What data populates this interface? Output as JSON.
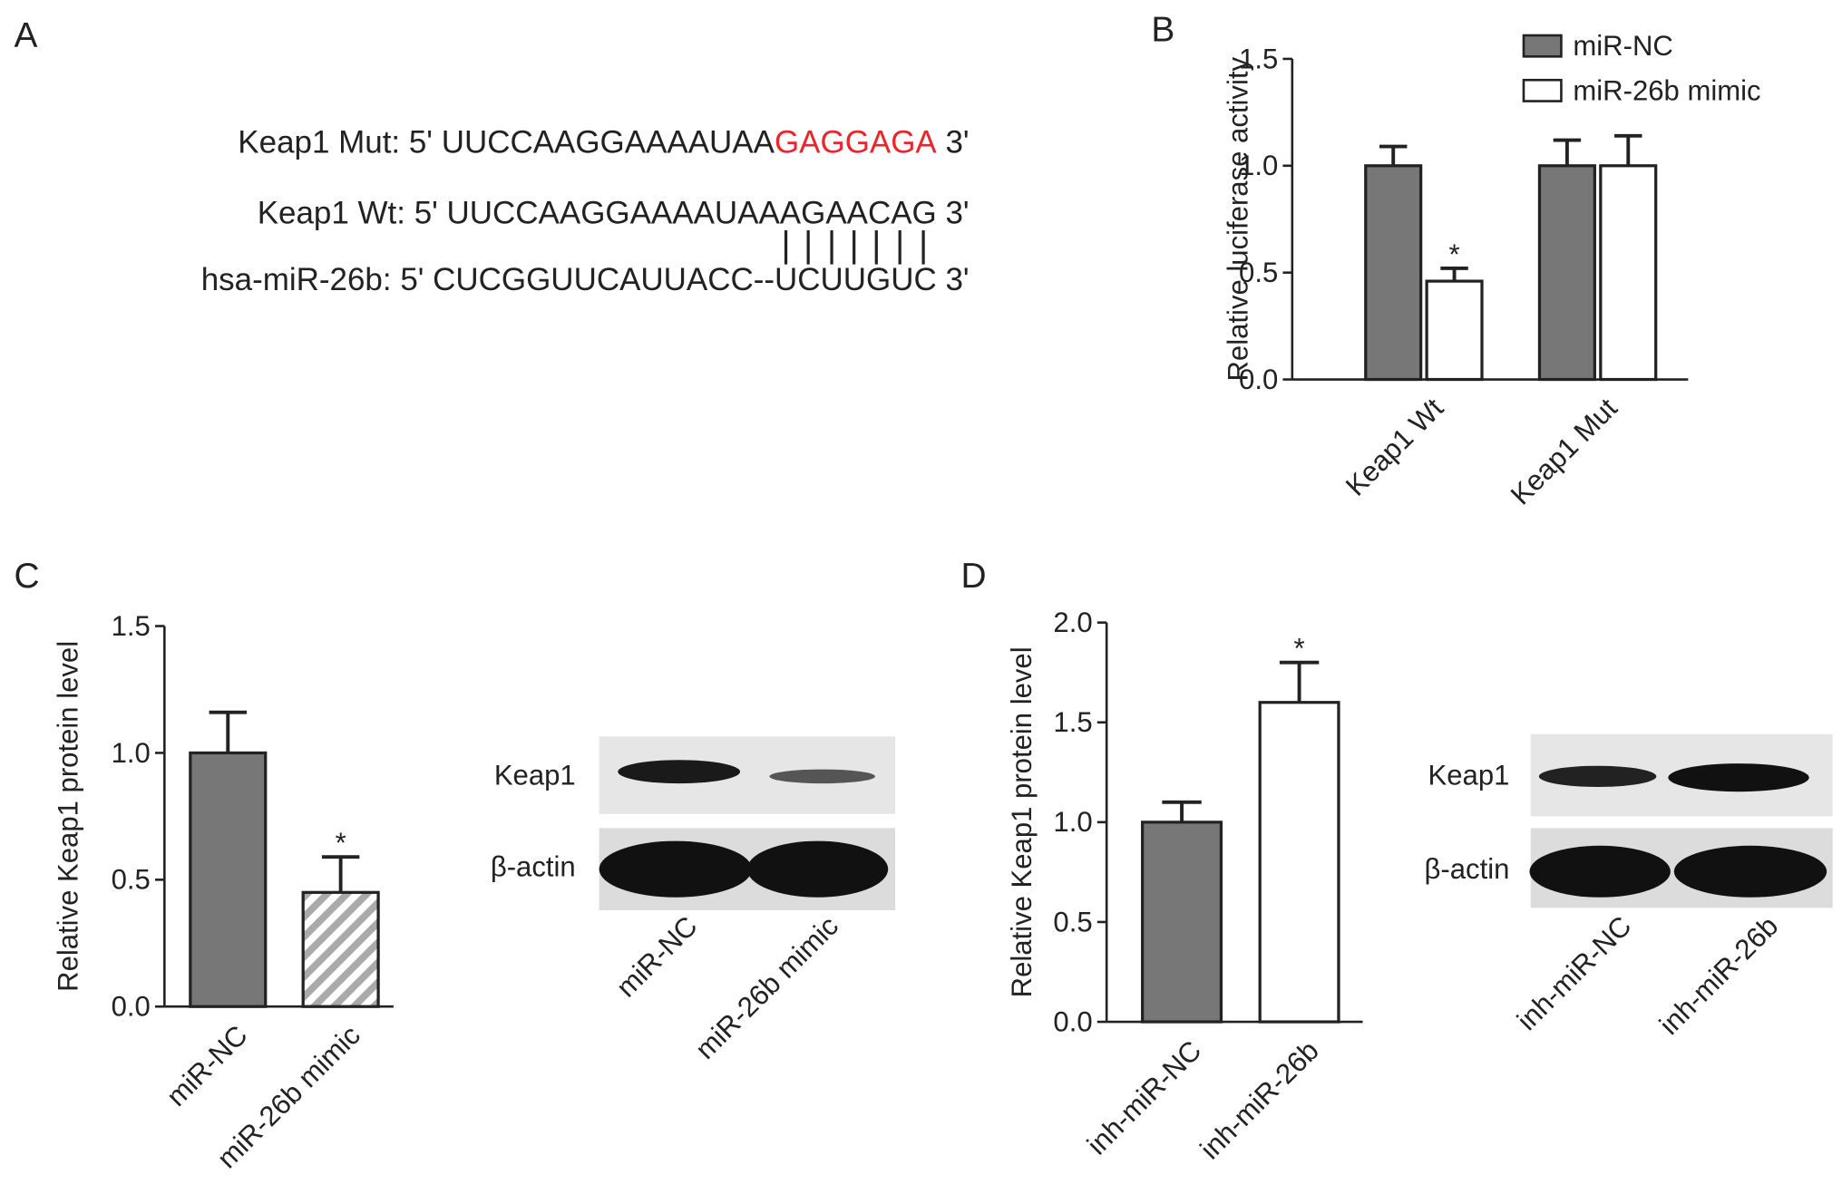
{
  "panel_a": {
    "label": "A",
    "rows": [
      {
        "name": "Keap1 Mut:",
        "seq": "5' UUCCAAGGAAAAUAA",
        "highlight": "GAGGAGA",
        "end": "3'"
      },
      {
        "name": "Keap1 Wt:",
        "seq": "5' UUCCAAGGAAAAUAAAGAACAG",
        "end": "3'"
      },
      {
        "name": "hsa-miR-26b:",
        "seq": "5' CUCGGUUCAUUACC--UCUUGUC",
        "end": "3'"
      }
    ]
  },
  "chart_data": [
    {
      "type": "bar",
      "panel_label": "B",
      "y_label": "Relative luciferase activity",
      "categories": [
        "Keap1 Wt",
        "Keap1 Mut"
      ],
      "series": [
        {
          "name": "miR-NC",
          "color": "#777777",
          "values": [
            1.0,
            1.0
          ],
          "errors": [
            0.09,
            0.12
          ],
          "significance": [
            null,
            null
          ]
        },
        {
          "name": "miR-26b mimic",
          "color": "#ffffff",
          "values": [
            0.46,
            1.0
          ],
          "errors": [
            0.06,
            0.14
          ],
          "significance": [
            "*",
            null
          ]
        }
      ],
      "ylim": [
        0,
        1.5
      ],
      "yticks": [
        {
          "value": 0,
          "label": "0.0"
        },
        0.5,
        {
          "value": 1,
          "label": "1.0"
        },
        1.5
      ],
      "legend": "top-right"
    },
    {
      "type": "bar",
      "panel_label": "C",
      "y_label": "Relative Keap1 protein level",
      "categories": [
        "miR-NC",
        "miR-26b mimic"
      ],
      "values": [
        1.0,
        0.45
      ],
      "errors": [
        0.16,
        0.14
      ],
      "colors": [
        "#777777",
        "#d9d9d9"
      ],
      "hatch": [
        false,
        true
      ],
      "significance": [
        null,
        "*"
      ],
      "ylim": [
        0,
        1.5
      ],
      "yticks": [
        {
          "value": 0,
          "label": "0.0"
        },
        0.5,
        {
          "value": 1,
          "label": "1.0"
        },
        1.5
      ]
    },
    {
      "type": "bar",
      "panel_label": "D",
      "y_label": "Relative Keap1 protein level",
      "categories": [
        "inh-miR-NC",
        "inh-miR-26b"
      ],
      "values": [
        1.0,
        1.6
      ],
      "errors": [
        0.1,
        0.2
      ],
      "colors": [
        "#777777",
        "#ffffff"
      ],
      "hatch": [
        false,
        false
      ],
      "significance": [
        null,
        "*"
      ],
      "ylim": [
        0,
        2
      ],
      "yticks": [
        {
          "value": 0,
          "label": "0.0"
        },
        0.5,
        {
          "value": 1,
          "label": "1.0"
        },
        1.5,
        {
          "value": 2,
          "label": "2.0"
        }
      ]
    }
  ],
  "blots": [
    {
      "rows": [
        "Keap1",
        "β-actin"
      ],
      "lanes": [
        "miR-NC",
        "miR-26b mimic"
      ]
    },
    {
      "rows": [
        "Keap1",
        "β-actin"
      ],
      "lanes": [
        "inh-miR-NC",
        "inh-miR-26b"
      ]
    }
  ]
}
